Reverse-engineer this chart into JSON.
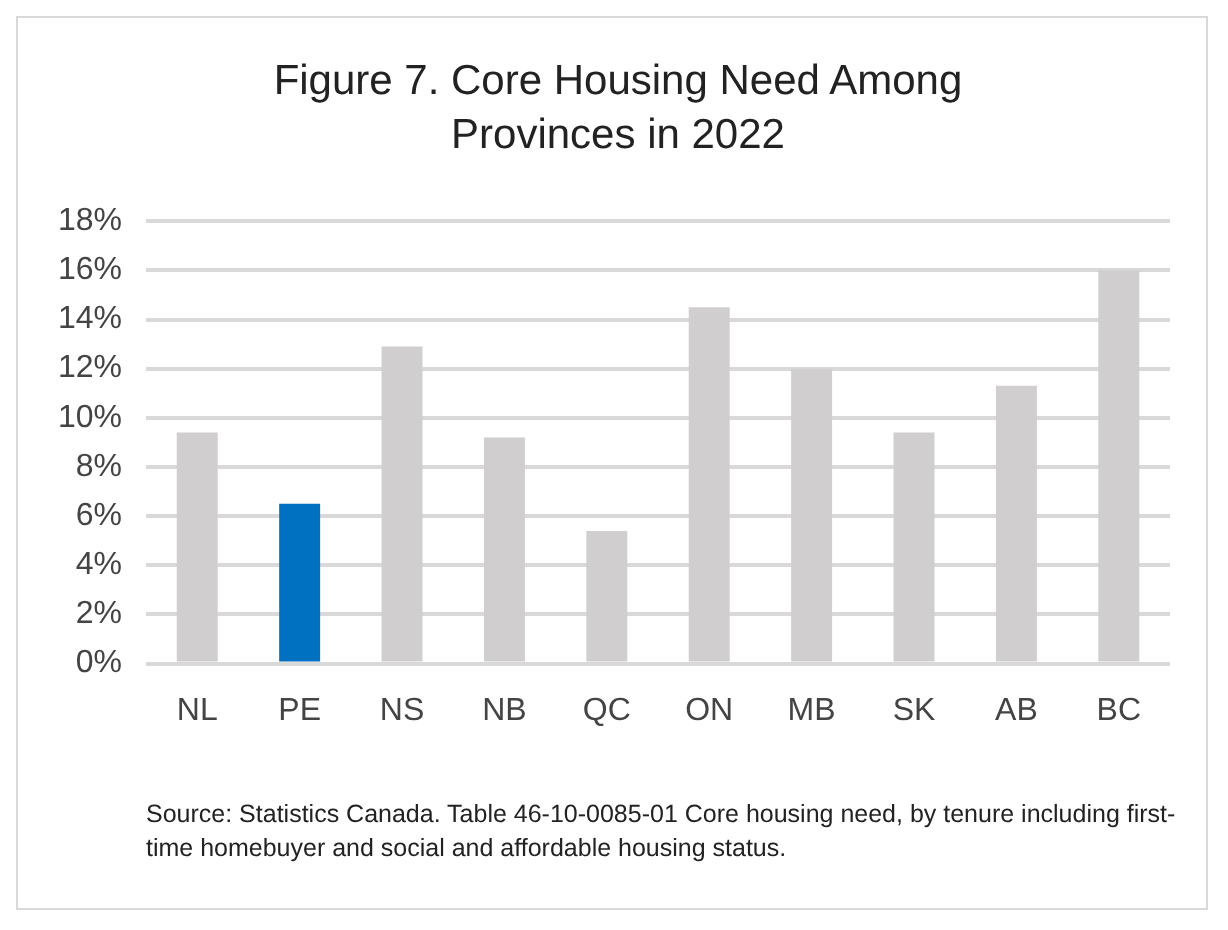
{
  "chart_data": {
    "type": "bar",
    "title": "Figure 7. Core Housing Need Among Provinces in 2022",
    "categories": [
      "NL",
      "PE",
      "NS",
      "NB",
      "QC",
      "ON",
      "MB",
      "SK",
      "AB",
      "BC"
    ],
    "values": [
      9.4,
      6.5,
      12.9,
      9.2,
      5.4,
      14.5,
      12.0,
      9.4,
      11.3,
      16.0
    ],
    "colors": [
      "#d0cece",
      "#0070c0",
      "#d0cece",
      "#d0cece",
      "#d0cece",
      "#d0cece",
      "#d0cece",
      "#d0cece",
      "#d0cece",
      "#d0cece"
    ],
    "ylim": [
      0,
      18
    ],
    "yticks": [
      {
        "value": 0,
        "label": "0%"
      },
      {
        "value": 2,
        "label": "2%"
      },
      {
        "value": 4,
        "label": "4%"
      },
      {
        "value": 6,
        "label": "6%"
      },
      {
        "value": 8,
        "label": "8%"
      },
      {
        "value": 10,
        "label": "10%"
      },
      {
        "value": 12,
        "label": "12%"
      },
      {
        "value": 14,
        "label": "14%"
      },
      {
        "value": 16,
        "label": "16%"
      },
      {
        "value": 18,
        "label": "18%"
      }
    ],
    "grid": "y",
    "legend": false,
    "annotations": [
      "Source: Statistics Canada. Table 46-10-0085-01  Core housing need, by tenure including first-time homebuyer and social and affordable housing status."
    ]
  }
}
